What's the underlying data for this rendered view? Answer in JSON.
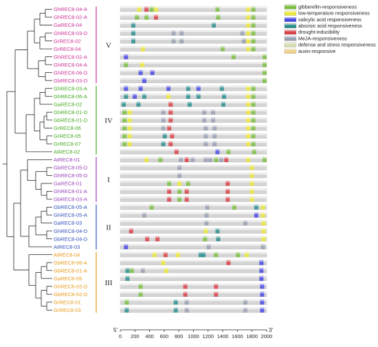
{
  "groups": [
    {
      "id": "V",
      "label": "V",
      "color": "#cc3399"
    },
    {
      "id": "IV",
      "label": "IV",
      "color": "#44aa22"
    },
    {
      "id": "I",
      "label": "I",
      "color": "#9944bb"
    },
    {
      "id": "II",
      "label": "II",
      "color": "#3355bb"
    },
    {
      "id": "III",
      "label": "III",
      "color": "#e69a1a"
    }
  ],
  "genes": [
    {
      "name": "GhREC8-04-A",
      "color": "#cc3399"
    },
    {
      "name": "GhREC8-02-A",
      "color": "#cc3399"
    },
    {
      "name": "GaREC8-04",
      "color": "#cc3399"
    },
    {
      "name": "GhREC8-03-D",
      "color": "#cc3399"
    },
    {
      "name": "GrREC8-02",
      "color": "#cc3399"
    },
    {
      "name": "GrREC8-04",
      "color": "#cc3399"
    },
    {
      "name": "GhREC8-02-A",
      "color": "#cc3399"
    },
    {
      "name": "GhREC8-04-A",
      "color": "#cc3399"
    },
    {
      "name": "GhREC8-06-D",
      "color": "#cc3399"
    },
    {
      "name": "GbREC8-03-D",
      "color": "#cc3399"
    },
    {
      "name": "GhREC8-03-A",
      "color": "#44aa22"
    },
    {
      "name": "GhREC8-06-A",
      "color": "#44aa22"
    },
    {
      "name": "GaREC8-02",
      "color": "#44aa22"
    },
    {
      "name": "GhREC8-01-D",
      "color": "#44aa22"
    },
    {
      "name": "GbREC8-01-D",
      "color": "#44aa22"
    },
    {
      "name": "GrREC8-06",
      "color": "#44aa22"
    },
    {
      "name": "GrREC8-05",
      "color": "#44aa22"
    },
    {
      "name": "GrREC8-07",
      "color": "#44aa22"
    },
    {
      "name": "AtREC8-02",
      "color": "#44aa22"
    },
    {
      "name": "AtREC8-01",
      "color": "#9944bb"
    },
    {
      "name": "GbREC8-05-D",
      "color": "#9944bb"
    },
    {
      "name": "GhREC8-05-D",
      "color": "#9944bb"
    },
    {
      "name": "GaREC8-01",
      "color": "#9944bb"
    },
    {
      "name": "GhREC8-01-A",
      "color": "#9944bb"
    },
    {
      "name": "GbREC8-03-A",
      "color": "#9944bb"
    },
    {
      "name": "GbREC8-05-A",
      "color": "#3355bb"
    },
    {
      "name": "GhREC8-05-A",
      "color": "#3355bb"
    },
    {
      "name": "GaREC8-03",
      "color": "#3355bb"
    },
    {
      "name": "GhREC8-04-D",
      "color": "#3355bb"
    },
    {
      "name": "GbREC8-04-D",
      "color": "#3355bb"
    },
    {
      "name": "AtREC8-03",
      "color": "#3355bb"
    },
    {
      "name": "AtREC8-04",
      "color": "#e69a1a"
    },
    {
      "name": "GbREC8-06-A",
      "color": "#e69a1a"
    },
    {
      "name": "GbREC8-01-A",
      "color": "#e69a1a"
    },
    {
      "name": "GaREC8-05",
      "color": "#e69a1a"
    },
    {
      "name": "GhREC8-02-D",
      "color": "#e69a1a"
    },
    {
      "name": "GbREC8-02-D",
      "color": "#e69a1a"
    },
    {
      "name": "GrREC8-01",
      "color": "#e69a1a"
    },
    {
      "name": "GrREC8-03",
      "color": "#e69a1a"
    }
  ],
  "legend": [
    {
      "label": "gibberellin-responsiveness",
      "color": "#7cc043"
    },
    {
      "label": "low-temperature responsiveness",
      "color": "#ece93a"
    },
    {
      "label": "salicylic acid responsiveness",
      "color": "#4a4ae6"
    },
    {
      "label": "abscisic acid responsiveness",
      "color": "#2e8f8f"
    },
    {
      "label": "drought-inducibility",
      "color": "#d9434a"
    },
    {
      "label": "MeJA-responsiveness",
      "color": "#9aa0b4"
    },
    {
      "label": "defense and stress responsiveness",
      "color": "#d8dcb0"
    },
    {
      "label": "auxin-responsive",
      "color": "#f0d28a"
    }
  ],
  "axis": {
    "min": 0,
    "max": 2000,
    "ticks": [
      0,
      200,
      400,
      600,
      800,
      1000,
      1200,
      1400,
      1600,
      1800,
      2000
    ],
    "left_label": "5'",
    "right_label": "3'"
  },
  "elements": [
    [
      [
        230,
        "low"
      ],
      [
        330,
        "drought"
      ],
      [
        400,
        "gib"
      ],
      [
        460,
        "low"
      ],
      [
        1300,
        "gib"
      ],
      [
        1720,
        "low"
      ],
      [
        1790,
        "gib"
      ]
    ],
    [
      [
        200,
        "gib"
      ],
      [
        330,
        "gib"
      ],
      [
        460,
        "drought"
      ],
      [
        1310,
        "gib"
      ],
      [
        1720,
        "low"
      ],
      [
        1790,
        "gib"
      ]
    ],
    [
      [
        150,
        "aba"
      ],
      [
        1250,
        "aba"
      ],
      [
        1720,
        "low"
      ],
      [
        1790,
        "gib"
      ]
    ],
    [
      [
        150,
        "aba"
      ],
      [
        700,
        "meja"
      ],
      [
        810,
        "meja"
      ],
      [
        1640,
        "meja"
      ],
      [
        1720,
        "low"
      ],
      [
        1790,
        "gib"
      ]
    ],
    [
      [
        150,
        "aba"
      ],
      [
        700,
        "meja"
      ],
      [
        810,
        "meja"
      ],
      [
        1660,
        "meja"
      ],
      [
        1720,
        "low"
      ],
      [
        1790,
        "gib"
      ]
    ],
    [
      [
        280,
        "low"
      ],
      [
        1370,
        "gib"
      ],
      [
        1720,
        "low"
      ],
      [
        1790,
        "gib"
      ]
    ],
    [
      [
        50,
        "sa"
      ],
      [
        1520,
        "gib"
      ],
      [
        1960,
        "gib"
      ]
    ],
    [
      [
        50,
        "gib"
      ],
      [
        270,
        "low"
      ],
      [
        1960,
        "gib"
      ]
    ],
    [
      [
        250,
        "sa"
      ],
      [
        410,
        "sa"
      ],
      [
        1960,
        "gib"
      ]
    ],
    [
      [
        300,
        "sa"
      ],
      [
        1960,
        "gib"
      ]
    ],
    [
      [
        50,
        "sa"
      ],
      [
        250,
        "sa"
      ],
      [
        630,
        "sa"
      ],
      [
        900,
        "aba"
      ],
      [
        1040,
        "sa"
      ],
      [
        1360,
        "aba"
      ],
      [
        1720,
        "low"
      ],
      [
        1790,
        "gib"
      ]
    ],
    [
      [
        50,
        "aba"
      ],
      [
        170,
        "sa"
      ],
      [
        300,
        "aba"
      ],
      [
        630,
        "low"
      ],
      [
        900,
        "aba"
      ],
      [
        1040,
        "aba"
      ],
      [
        1390,
        "aba"
      ],
      [
        1720,
        "low"
      ],
      [
        1790,
        "gib"
      ]
    ],
    [
      [
        20,
        "aba"
      ],
      [
        220,
        "aba"
      ],
      [
        660,
        "drought"
      ],
      [
        920,
        "aba"
      ],
      [
        1380,
        "aba"
      ],
      [
        1720,
        "low"
      ],
      [
        1790,
        "gib"
      ]
    ],
    [
      [
        30,
        "gib"
      ],
      [
        100,
        "low"
      ],
      [
        560,
        "meja"
      ],
      [
        660,
        "drought"
      ],
      [
        1120,
        "meja"
      ],
      [
        1240,
        "meja"
      ],
      [
        1720,
        "low"
      ],
      [
        1790,
        "gib"
      ]
    ],
    [
      [
        30,
        "gib"
      ],
      [
        100,
        "low"
      ],
      [
        560,
        "meja"
      ],
      [
        660,
        "drought"
      ],
      [
        1120,
        "meja"
      ],
      [
        1240,
        "meja"
      ],
      [
        1720,
        "low"
      ],
      [
        1790,
        "gib"
      ]
    ],
    [
      [
        30,
        "gib"
      ],
      [
        100,
        "low"
      ],
      [
        560,
        "meja"
      ],
      [
        640,
        "drought"
      ],
      [
        1140,
        "meja"
      ],
      [
        1260,
        "meja"
      ],
      [
        1720,
        "low"
      ],
      [
        1790,
        "gib"
      ]
    ],
    [
      [
        30,
        "gib"
      ],
      [
        100,
        "low"
      ],
      [
        580,
        "aba"
      ],
      [
        680,
        "drought"
      ],
      [
        1140,
        "meja"
      ],
      [
        1260,
        "meja"
      ],
      [
        1720,
        "low"
      ],
      [
        1790,
        "gib"
      ]
    ],
    [
      [
        30,
        "gib"
      ],
      [
        100,
        "low"
      ],
      [
        560,
        "aba"
      ],
      [
        660,
        "drought"
      ],
      [
        1140,
        "meja"
      ],
      [
        1260,
        "meja"
      ],
      [
        1720,
        "low"
      ],
      [
        1790,
        "gib"
      ]
    ],
    [
      [
        740,
        "drought"
      ],
      [
        1300,
        "sa"
      ],
      [
        1450,
        "gib"
      ],
      [
        1800,
        "gib"
      ]
    ],
    [
      [
        330,
        "low"
      ],
      [
        520,
        "gib"
      ],
      [
        800,
        "meja"
      ],
      [
        880,
        "drought"
      ],
      [
        960,
        "meja"
      ],
      [
        1140,
        "meja"
      ],
      [
        1200,
        "meja"
      ],
      [
        1280,
        "gib"
      ],
      [
        1350,
        "meja"
      ],
      [
        1420,
        "drought"
      ],
      [
        1720,
        "low"
      ],
      [
        1960,
        "gib"
      ]
    ],
    [
      [
        780,
        "meja"
      ],
      [
        1770,
        "low"
      ]
    ],
    [
      [
        780,
        "meja"
      ],
      [
        1770,
        "low"
      ]
    ],
    [
      [
        640,
        "gib"
      ],
      [
        780,
        "low"
      ],
      [
        900,
        "gib"
      ],
      [
        1440,
        "drought"
      ],
      [
        1770,
        "low"
      ]
    ],
    [
      [
        640,
        "drought"
      ],
      [
        780,
        "gib"
      ],
      [
        880,
        "drought"
      ],
      [
        1440,
        "drought"
      ],
      [
        1770,
        "low"
      ]
    ],
    [
      [
        640,
        "drought"
      ],
      [
        780,
        "gib"
      ],
      [
        880,
        "drought"
      ],
      [
        1440,
        "drought"
      ],
      [
        1770,
        "low"
      ]
    ],
    [
      [
        400,
        "gib"
      ],
      [
        1160,
        "meja"
      ],
      [
        1530,
        "gib"
      ],
      [
        1830,
        "aba"
      ],
      [
        1920,
        "low"
      ]
    ],
    [
      [
        300,
        "meja"
      ],
      [
        1150,
        "meja"
      ],
      [
        1830,
        "sa"
      ],
      [
        1920,
        "low"
      ]
    ],
    [
      [
        1150,
        "meja"
      ],
      [
        1680,
        "meja"
      ],
      [
        1930,
        "low"
      ]
    ],
    [
      [
        120,
        "drought"
      ],
      [
        1140,
        "low"
      ],
      [
        1300,
        "aba"
      ],
      [
        1930,
        "low"
      ]
    ],
    [
      [
        340,
        "drought"
      ],
      [
        480,
        "drought"
      ],
      [
        1130,
        "gib"
      ],
      [
        1310,
        "aba"
      ],
      [
        1930,
        "low"
      ]
    ],
    [
      [
        50,
        "sa"
      ],
      [
        1180,
        "meja"
      ],
      [
        1920,
        "meja"
      ]
    ],
    [
      [
        440,
        "low"
      ],
      [
        590,
        "drought"
      ],
      [
        760,
        "low"
      ],
      [
        1070,
        "aba"
      ],
      [
        1110,
        "aba"
      ],
      [
        1280,
        "gib"
      ],
      [
        1580,
        "gib"
      ],
      [
        1700,
        "low"
      ]
    ],
    [
      [
        560,
        "low"
      ],
      [
        1450,
        "drought"
      ],
      [
        1900,
        "sa"
      ]
    ],
    [
      [
        70,
        "aba"
      ],
      [
        130,
        "gib"
      ],
      [
        280,
        "meja"
      ],
      [
        600,
        "low"
      ],
      [
        1900,
        "sa"
      ]
    ],
    [
      [
        70,
        "aba"
      ],
      [
        1900,
        "sa"
      ]
    ],
    [
      [
        250,
        "gib"
      ],
      [
        860,
        "drought"
      ],
      [
        1280,
        "drought"
      ],
      [
        1910,
        "sa"
      ]
    ],
    [
      [
        250,
        "gib"
      ],
      [
        860,
        "drought"
      ],
      [
        1280,
        "drought"
      ],
      [
        1910,
        "sa"
      ]
    ],
    [
      [
        60,
        "gib"
      ],
      [
        730,
        "aba"
      ],
      [
        880,
        "meja"
      ],
      [
        1680,
        "meja"
      ],
      [
        1910,
        "sa"
      ]
    ],
    [
      [
        60,
        "aba"
      ],
      [
        730,
        "aba"
      ],
      [
        880,
        "meja"
      ],
      [
        1680,
        "meja"
      ],
      [
        1910,
        "sa"
      ]
    ]
  ]
}
